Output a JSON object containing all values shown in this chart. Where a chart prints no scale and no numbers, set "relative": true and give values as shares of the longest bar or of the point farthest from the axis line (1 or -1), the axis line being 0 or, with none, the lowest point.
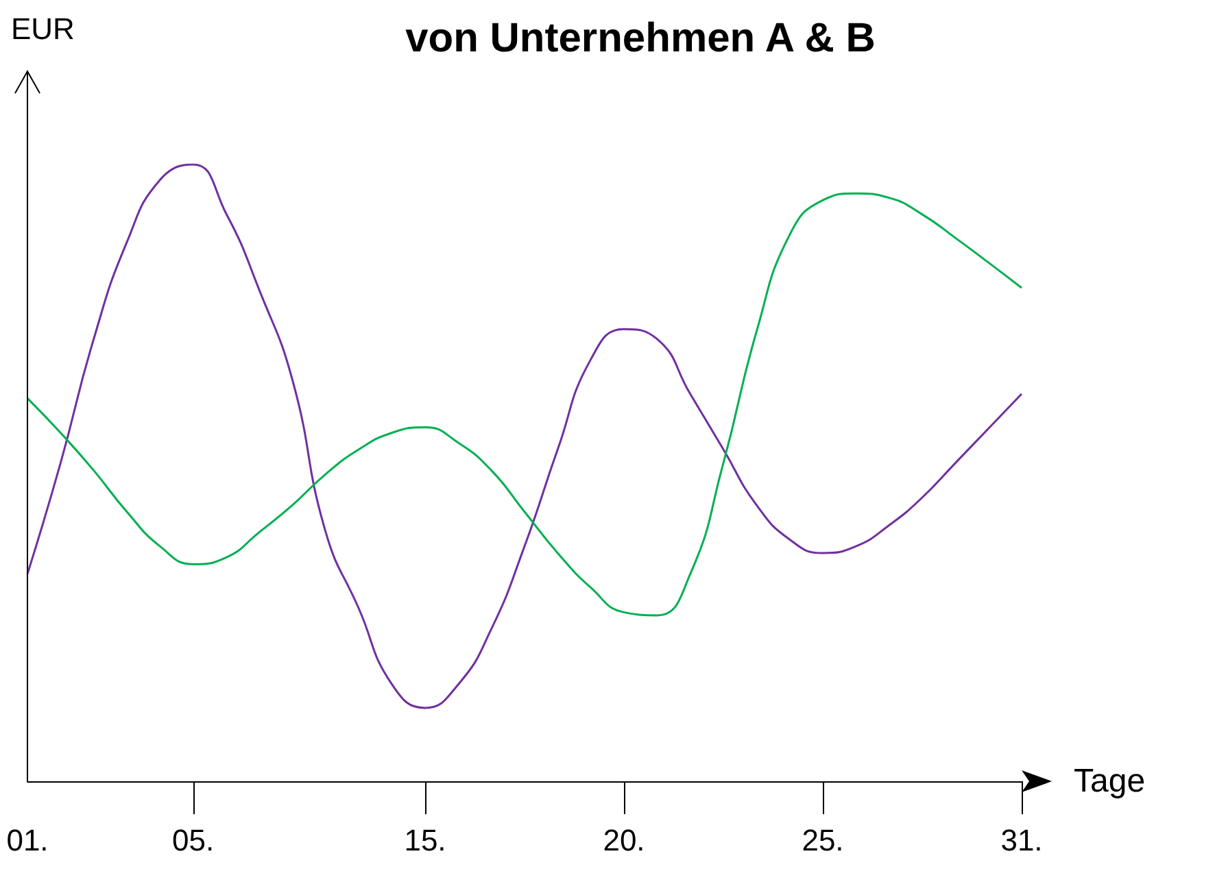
{
  "chart_data": {
    "type": "line",
    "title": "von Unternehmen A & B",
    "xlabel": "Tage",
    "ylabel": "EUR",
    "relative": true,
    "grid": false,
    "marker": "none",
    "line_style": "solid",
    "categories": [
      "01.",
      null,
      null,
      null,
      null,
      "05.",
      null,
      null,
      null,
      null,
      null,
      null,
      "15.",
      null,
      null,
      null,
      null,
      null,
      "20.",
      null,
      null,
      null,
      null,
      null,
      "25.",
      null,
      null,
      null,
      null,
      null,
      "31."
    ],
    "series": [
      {
        "color": "#7030a0",
        "values": [
          0.336,
          0.516,
          0.717,
          0.874,
          0.975,
          1,
          0.92,
          0.796,
          0.65,
          0.404,
          0.28,
          0.157,
          0.119,
          0.157,
          0.247,
          0.381,
          0.538,
          0.684,
          0.733,
          0.717,
          0.628,
          0.538,
          0.448,
          0.392,
          0.37,
          0.381,
          0.415,
          0.46,
          0.516,
          0.572,
          0.628
        ]
      },
      {
        "color": "#00b050",
        "values": [
          0.621,
          0.565,
          0.504,
          0.437,
          0.381,
          0.352,
          0.363,
          0.404,
          0.448,
          0.498,
          0.538,
          0.565,
          0.574,
          0.549,
          0.504,
          0.437,
          0.37,
          0.314,
          0.274,
          0.269,
          0.336,
          0.516,
          0.729,
          0.886,
          0.942,
          0.953,
          0.946,
          0.919,
          0.881,
          0.841,
          0.8
        ]
      }
    ]
  }
}
